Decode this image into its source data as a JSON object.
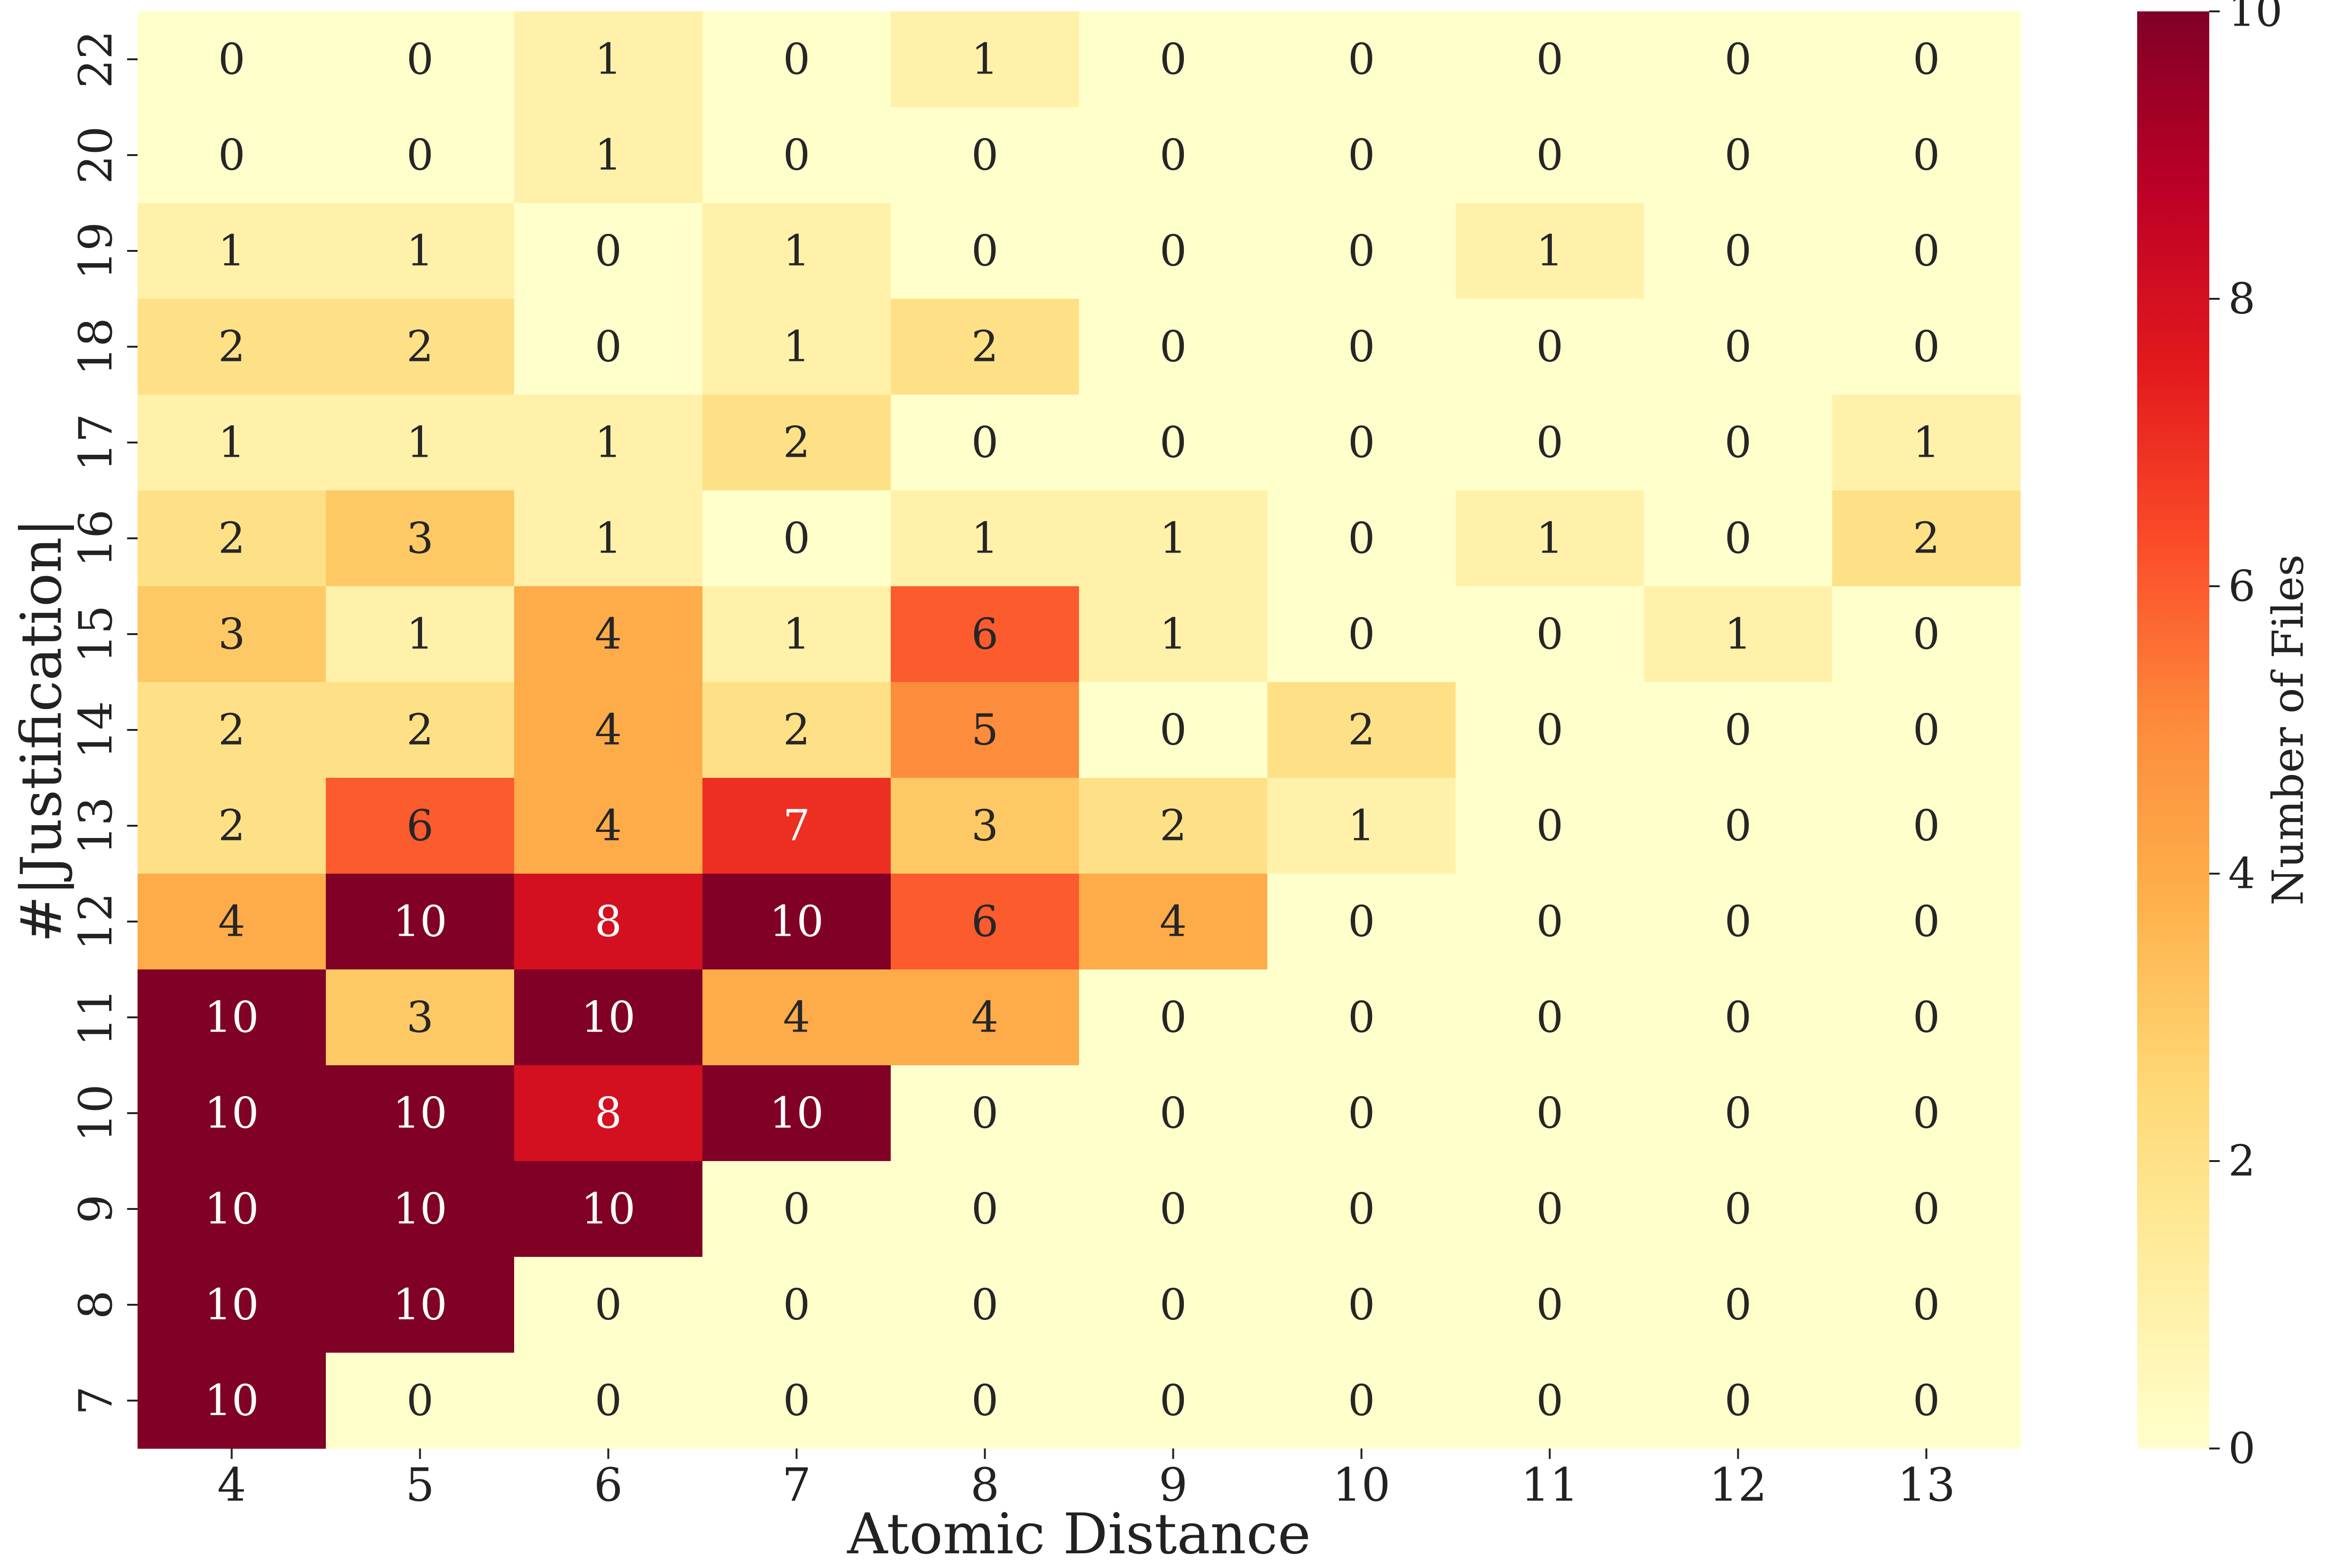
{
  "chart_data": {
    "type": "heatmap",
    "title": "",
    "xlabel": "Atomic Distance",
    "ylabel": "#|Justification|",
    "x": [
      4,
      5,
      6,
      7,
      8,
      9,
      10,
      11,
      12,
      13
    ],
    "y": [
      22,
      20,
      19,
      18,
      17,
      16,
      15,
      14,
      13,
      12,
      11,
      10,
      9,
      8,
      7
    ],
    "values": [
      [
        0,
        0,
        1,
        0,
        1,
        0,
        0,
        0,
        0,
        0
      ],
      [
        0,
        0,
        1,
        0,
        0,
        0,
        0,
        0,
        0,
        0
      ],
      [
        1,
        1,
        0,
        1,
        0,
        0,
        0,
        1,
        0,
        0
      ],
      [
        2,
        2,
        0,
        1,
        2,
        0,
        0,
        0,
        0,
        0
      ],
      [
        1,
        1,
        1,
        2,
        0,
        0,
        0,
        0,
        0,
        1
      ],
      [
        2,
        3,
        1,
        0,
        1,
        1,
        0,
        1,
        0,
        2
      ],
      [
        3,
        1,
        4,
        1,
        6,
        1,
        0,
        0,
        1,
        0
      ],
      [
        2,
        2,
        4,
        2,
        5,
        0,
        2,
        0,
        0,
        0
      ],
      [
        2,
        6,
        4,
        7,
        3,
        2,
        1,
        0,
        0,
        0
      ],
      [
        4,
        10,
        8,
        10,
        6,
        4,
        0,
        0,
        0,
        0
      ],
      [
        10,
        3,
        10,
        4,
        4,
        0,
        0,
        0,
        0,
        0
      ],
      [
        10,
        10,
        8,
        10,
        0,
        0,
        0,
        0,
        0,
        0
      ],
      [
        10,
        10,
        10,
        0,
        0,
        0,
        0,
        0,
        0,
        0
      ],
      [
        10,
        10,
        0,
        0,
        0,
        0,
        0,
        0,
        0,
        0
      ],
      [
        10,
        0,
        0,
        0,
        0,
        0,
        0,
        0,
        0,
        0
      ]
    ],
    "colorbar": {
      "label": "Number of Files",
      "range": [
        0,
        10
      ],
      "ticks": [
        0,
        2,
        4,
        6,
        8,
        10
      ],
      "colormap": "YlOrRd"
    },
    "annotations": true,
    "grid": false,
    "legend": "none"
  }
}
